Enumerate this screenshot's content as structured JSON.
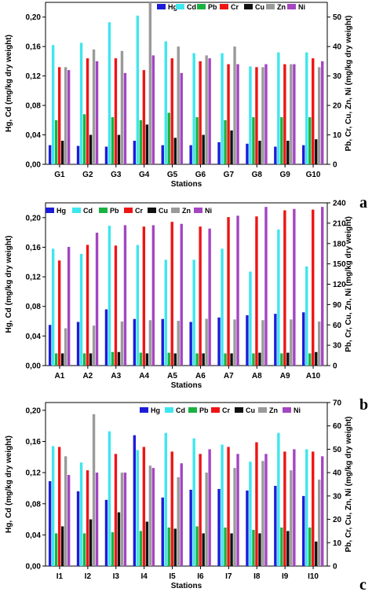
{
  "chart_data": [
    {
      "type": "bar",
      "panel_label": "a",
      "xlabel": "Stations",
      "ylabel": "Hg, Cd  (mg/kg dry weight)",
      "ylabel_right": "Pb, Cr, Cu, Zn, Ni  (mg/kg dry weight)",
      "ylim": [
        0,
        0.22
      ],
      "y2lim": [
        0,
        55
      ],
      "left_ticks": [
        "0,00",
        "0,04",
        "0,08",
        "0,12",
        "0,16",
        "0,20"
      ],
      "right_ticks": [
        "0",
        "10",
        "20",
        "30",
        "40",
        "50"
      ],
      "legend_position": "top-right",
      "categories": [
        "G1",
        "G2",
        "G3",
        "G4",
        "G5",
        "G6",
        "G7",
        "G8",
        "G9",
        "G10"
      ],
      "series": [
        {
          "name": "Hg",
          "axis": "left",
          "values": [
            0.026,
            0.025,
            0.024,
            0.032,
            0.026,
            0.026,
            0.03,
            0.028,
            0.024,
            0.026
          ]
        },
        {
          "name": "Cd",
          "axis": "left",
          "values": [
            0.162,
            0.165,
            0.193,
            0.202,
            0.167,
            0.151,
            0.151,
            0.133,
            0.152,
            0.152
          ]
        },
        {
          "name": "Pb",
          "axis": "right",
          "values": [
            15,
            17,
            16,
            15,
            17.5,
            16,
            15,
            16,
            16,
            16
          ]
        },
        {
          "name": "Cr",
          "axis": "right",
          "values": [
            33,
            36,
            36,
            32,
            36,
            35,
            34,
            33,
            34,
            36
          ]
        },
        {
          "name": "Cu",
          "axis": "right",
          "values": [
            8,
            10,
            10,
            13.5,
            9,
            10,
            11.5,
            8,
            8,
            8.5
          ]
        },
        {
          "name": "Zn",
          "axis": "right",
          "values": [
            33,
            39,
            38.5,
            55,
            40,
            37,
            40,
            33,
            34,
            33
          ]
        },
        {
          "name": "Ni",
          "axis": "right",
          "values": [
            32,
            35,
            31,
            37,
            31,
            36,
            34,
            34,
            34,
            35
          ]
        }
      ]
    },
    {
      "type": "bar",
      "panel_label": "b",
      "xlabel": "Stations",
      "ylabel": "Hg, Cd  (mg/kg dry weight)",
      "ylabel_right": "Pb, Cr, Cu, Zn, Ni  (mg/kg dry weight)",
      "ylim": [
        0,
        0.22
      ],
      "y2lim": [
        0,
        240
      ],
      "left_ticks": [
        "0,00",
        "0,04",
        "0,08",
        "0,12",
        "0,16",
        "0,20"
      ],
      "right_ticks": [
        "0",
        "30",
        "60",
        "90",
        "120",
        "150",
        "180",
        "210",
        "240"
      ],
      "legend_position": "top",
      "categories": [
        "A1",
        "A2",
        "A3",
        "A4",
        "A5",
        "A6",
        "A7",
        "A8",
        "A9",
        "A10"
      ],
      "series": [
        {
          "name": "Hg",
          "axis": "left",
          "values": [
            0.055,
            0.059,
            0.076,
            0.063,
            0.063,
            0.059,
            0.065,
            0.068,
            0.07,
            0.072
          ]
        },
        {
          "name": "Cd",
          "axis": "left",
          "values": [
            0.158,
            0.151,
            0.189,
            0.163,
            0.143,
            0.143,
            0.158,
            0.127,
            0.184,
            0.134
          ]
        },
        {
          "name": "Pb",
          "axis": "right",
          "values": [
            18,
            18,
            20,
            19,
            19,
            18,
            18,
            18,
            18,
            18
          ]
        },
        {
          "name": "Cr",
          "axis": "right",
          "values": [
            155,
            178,
            177,
            205,
            212,
            205,
            219,
            220,
            229,
            230
          ]
        },
        {
          "name": "Cu",
          "axis": "right",
          "values": [
            18,
            18,
            20,
            18,
            18,
            18,
            18,
            19,
            19,
            20
          ]
        },
        {
          "name": "Zn",
          "axis": "right",
          "values": [
            55,
            59,
            65,
            67,
            66,
            69,
            68,
            67,
            68,
            65
          ]
        },
        {
          "name": "Ni",
          "axis": "right",
          "values": [
            175,
            196,
            207,
            207,
            209,
            202,
            221,
            234,
            231,
            234
          ]
        }
      ]
    },
    {
      "type": "bar",
      "panel_label": "c",
      "xlabel": "Stations",
      "ylabel": "Hg, Cd  (mg/kg dry weight)",
      "ylabel_right": "Pb, Cr, Cu, Zn, Ni  (mg/kg dry weight)",
      "ylim": [
        0,
        0.21
      ],
      "y2lim": [
        0,
        70
      ],
      "left_ticks": [
        "0,00",
        "0,04",
        "0,08",
        "0,12",
        "0,16",
        "0,20"
      ],
      "right_ticks": [
        "0",
        "10",
        "20",
        "30",
        "40",
        "50",
        "60",
        "70"
      ],
      "legend_position": "top",
      "categories": [
        "I1",
        "I2",
        "I3",
        "I4",
        "I5",
        "I6",
        "I7",
        "I8",
        "I9",
        "I10"
      ],
      "series": [
        {
          "name": "Hg",
          "axis": "left",
          "values": [
            0.109,
            0.096,
            0.085,
            0.168,
            0.088,
            0.098,
            0.099,
            0.097,
            0.103,
            0.09
          ]
        },
        {
          "name": "Cd",
          "axis": "left",
          "values": [
            0.154,
            0.133,
            0.173,
            0.149,
            0.171,
            0.164,
            0.156,
            0.134,
            0.171,
            0.15
          ]
        },
        {
          "name": "Pb",
          "axis": "right",
          "values": [
            14,
            14,
            14.5,
            15,
            16.5,
            17,
            16.5,
            15.5,
            16.5,
            16.5
          ]
        },
        {
          "name": "Cr",
          "axis": "right",
          "values": [
            51,
            41,
            48,
            51,
            49,
            48,
            51,
            53,
            49,
            49
          ]
        },
        {
          "name": "Cu",
          "axis": "right",
          "values": [
            17,
            20,
            23,
            19,
            16,
            14,
            14,
            14,
            15,
            10.5
          ]
        },
        {
          "name": "Zn",
          "axis": "right",
          "values": [
            47,
            65,
            40,
            43,
            38,
            40,
            42,
            45,
            41,
            37
          ]
        },
        {
          "name": "Ni",
          "axis": "right",
          "values": [
            39,
            40,
            40,
            42,
            44,
            50,
            48,
            48,
            50,
            47
          ]
        }
      ]
    }
  ],
  "colors": {
    "Hg": "#1c1cd8",
    "Cd": "#3ee6ee",
    "Pb": "#19b241",
    "Cr": "#ee1414",
    "Cu": "#111111",
    "Zn": "#9a9a9a",
    "Ni": "#a445c2"
  }
}
